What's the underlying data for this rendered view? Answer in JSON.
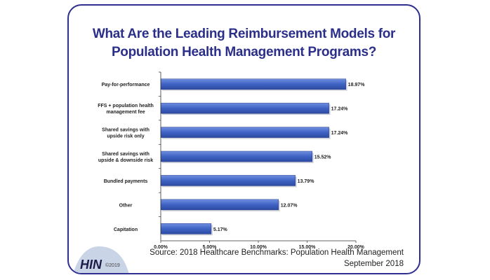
{
  "title": {
    "line1": "What Are the Leading Reimbursement Models for",
    "line2": "Population Health Management Programs?"
  },
  "source": {
    "line1": "Source: 2018 Healthcare Benchmarks: Population Health Management",
    "line2": "September 2018"
  },
  "logo": {
    "text": "HIN",
    "copyright": "©2019"
  },
  "colors": {
    "bar": "#3f63c4",
    "title": "#2b2f8a",
    "border": "#2e2f8f"
  },
  "chart_data": {
    "type": "bar",
    "orientation": "horizontal",
    "categories": [
      [
        "Pay-for-performance"
      ],
      [
        "FFS + population health",
        "management fee"
      ],
      [
        "Shared savings with",
        "upside risk only"
      ],
      [
        "Shared savings with",
        "upside & downside risk"
      ],
      [
        "Bundled payments"
      ],
      [
        "Other"
      ],
      [
        "Capitation"
      ]
    ],
    "values": [
      18.97,
      17.24,
      17.24,
      15.52,
      13.79,
      12.07,
      5.17
    ],
    "value_labels": [
      "18.97%",
      "17.24%",
      "17.24%",
      "15.52%",
      "13.79%",
      "12.07%",
      "5.17%"
    ],
    "xticks": [
      "0.00%",
      "5.00%",
      "10.00%",
      "15.00%",
      "20.00%"
    ],
    "xtick_values": [
      0,
      5,
      10,
      15,
      20
    ],
    "xlim": [
      0,
      20
    ],
    "grid": false,
    "legend": "none"
  }
}
